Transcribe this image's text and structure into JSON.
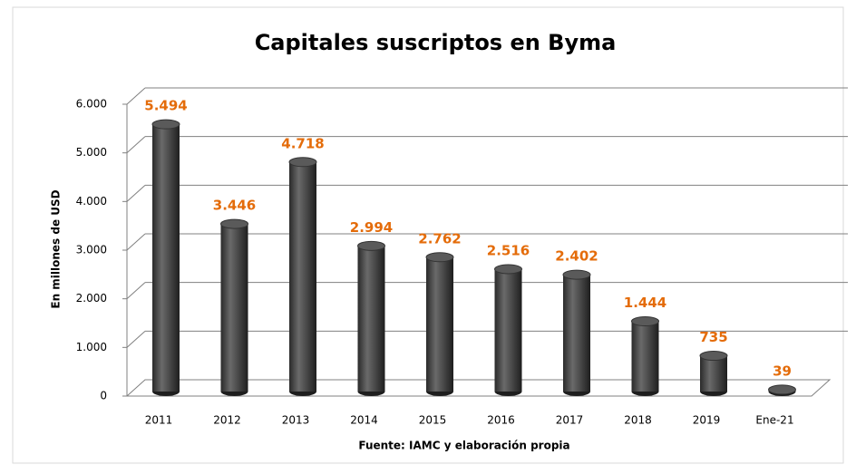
{
  "chart_data": {
    "type": "bar",
    "title": "Capitales suscriptos en Byma",
    "y_label": "En millones de USD",
    "source": "Fuente: IAMC y elaboración propia",
    "categories": [
      "2011",
      "2012",
      "2013",
      "2014",
      "2015",
      "2016",
      "2017",
      "2018",
      "2019",
      "Ene-21"
    ],
    "values": [
      5494,
      3446,
      4718,
      2994,
      2762,
      2516,
      2402,
      1444,
      735,
      39
    ],
    "value_labels": [
      "5.494",
      "3.446",
      "4.718",
      "2.994",
      "2.762",
      "2.516",
      "2.402",
      "1.444",
      "735",
      "39"
    ],
    "color": "#404040",
    "label_color": "#e46c0a",
    "ylim": [
      0,
      6000
    ],
    "yticks": [
      0,
      {
        "value": 1000,
        "label": "1.000"
      },
      {
        "value": 2000,
        "label": "2.000"
      },
      {
        "value": 3000,
        "label": "3.000"
      },
      {
        "value": 4000,
        "label": "4.000"
      },
      {
        "value": 5000,
        "label": "5.000"
      },
      {
        "value": 6000,
        "label": "6.000"
      }
    ],
    "grid": true
  }
}
